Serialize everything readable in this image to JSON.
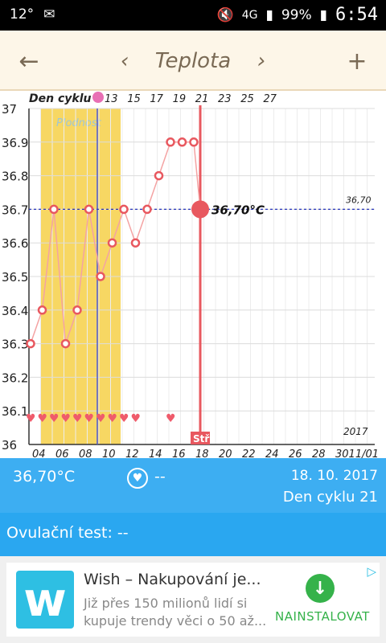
{
  "status_bar": {
    "temperature": "12°",
    "network": "4G",
    "battery": "99%",
    "time": "6:54"
  },
  "app_bar": {
    "back_icon": "arrow-left-icon",
    "prev_icon": "chevron-left-icon",
    "title": "Teplota",
    "next_icon": "chevron-right-icon",
    "add_icon": "plus-icon"
  },
  "chart": {
    "header_label": "Den cyklu",
    "fertile_label": "Plodnost",
    "year_label": "2017",
    "line_value_label": "36,70",
    "selected_label": "36,70°C",
    "today_marker": "Stř",
    "colors": {
      "fertile": "#f7d763",
      "line": "#f4a3a3",
      "marker": "#e8585f",
      "blue_line": "#4a56d8",
      "dotted": "#2633b8"
    }
  },
  "chart_data": {
    "type": "line",
    "y_ticks": [
      "37",
      "36.9",
      "36.8",
      "36.7",
      "36.6",
      "36.5",
      "36.4",
      "36.3",
      "36.2",
      "36.1",
      "36"
    ],
    "cycle_days": [
      "13",
      "15",
      "17",
      "19",
      "21",
      "23",
      "25",
      "27"
    ],
    "date_ticks": [
      "04",
      "06",
      "08",
      "10",
      "12",
      "14",
      "16",
      "18",
      "20",
      "22",
      "24",
      "26",
      "28",
      "3011/01"
    ],
    "ylim": [
      36.0,
      37.0
    ],
    "temperatures": [
      36.3,
      36.4,
      36.7,
      36.3,
      36.4,
      36.7,
      36.5,
      36.6,
      36.7,
      36.6,
      36.7,
      36.8,
      36.9,
      36.9,
      36.9,
      36.7
    ],
    "selected_value": 36.7,
    "reference_line": 36.7,
    "heart_days": [
      0,
      1,
      2,
      3,
      4,
      5,
      6,
      7,
      8,
      9,
      12
    ]
  },
  "info": {
    "temperature": "36,70°C",
    "dash": "--",
    "date": "18. 10. 2017",
    "cycle_day": "Den cyklu 21"
  },
  "ovulation": {
    "label": "Ovulační test: --"
  },
  "ad": {
    "logo_letter": "w",
    "title": "Wish – Nakupování je...",
    "desc": "Již přes 150 milionů lidí si kupuje trendy věci o 50 až...",
    "install": "NAINSTALOVAT",
    "adchoice": "▷"
  }
}
